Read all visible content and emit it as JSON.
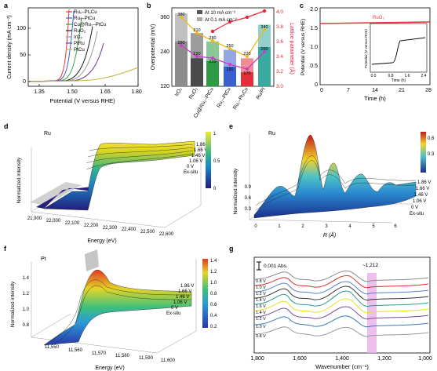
{
  "figure": {
    "panel_labels": [
      "a",
      "b",
      "c",
      "d",
      "e",
      "f",
      "g"
    ]
  },
  "panel_a": {
    "ylabel": "Current density (mA cm⁻²)",
    "xlabel": "Potential (V versus RHE)",
    "xticks": [
      "1.35",
      "1.50",
      "1.65",
      "1.80"
    ],
    "yticks": [
      "0",
      "50",
      "100"
    ],
    "legend": [
      {
        "label": "Ru₁–Pt₃Cu",
        "color": "#e8363d"
      },
      {
        "label": "Ru₁–PtCu",
        "color": "#3c5ed8"
      },
      {
        "label": "Cu@Ru₁–PtCu",
        "color": "#33a24a"
      },
      {
        "label": "RuO₂",
        "color": "#222222"
      },
      {
        "label": "IrO₂",
        "color": "#9a9a9a"
      },
      {
        "label": "PtRu",
        "color": "#6a3f9a"
      },
      {
        "label": "PtCu",
        "color": "#c8b53c"
      }
    ]
  },
  "panel_b": {
    "ylabel_left": "Overpotential (mV)",
    "ylabel_right": "Lattice parameter (Å)",
    "yticks_left": [
      "120",
      "240",
      "360"
    ],
    "yticks_right": [
      "3.0",
      "3.2",
      "3.4",
      "3.6",
      "3.8",
      "4.0"
    ],
    "legend_10": "At 10 mA cm⁻²",
    "legend_01": "At 0.1 mA cm⁻²",
    "categories": [
      "IrO₂",
      "RuO₂",
      "Cu@Ru₁–PtCu",
      "Ru₁–PtCu",
      "Ru₁–Pt₃Cu",
      "Ru/PI"
    ],
    "bar_colors": [
      "#8c8c8c",
      "#4a4a4a",
      "#2c9b44",
      "#3a5fd0",
      "#e0303a",
      "#3aa9a0"
    ],
    "bar_labels_10": [
      "380",
      "310",
      "280",
      "250",
      "220",
      "340"
    ],
    "bar_labels_01": [
      "280",
      "220",
      "210",
      "190",
      "170",
      "260"
    ]
  },
  "panel_c": {
    "ylabel": "Potential (V versus RHE)",
    "xlabel": "Time (h)",
    "xticks": [
      "0",
      "7",
      "14",
      "21",
      "28"
    ],
    "yticks": [
      "0",
      "0.5",
      "1.0",
      "1.5",
      "2.0"
    ],
    "inset_label": "RuO₂",
    "inset_ylabel": "Potential (V versus RHE)",
    "inset_xlabel": "Time (h)",
    "inset_xticks": [
      "0.0",
      "0.8",
      "1.6",
      "2.4"
    ],
    "inset_yticks": [
      "1.5",
      "1.8",
      "2.1",
      "2.4"
    ]
  },
  "panel_d": {
    "element": "Ru",
    "zlabel": "Normalized intensity",
    "xlabel": "Energy (eV)",
    "xticks": [
      "21,900",
      "22,000",
      "22,100",
      "22,200",
      "22,300",
      "22,400",
      "22,500",
      "22,600"
    ],
    "traces": [
      "1.86 V",
      "1.66 V",
      "1.46 V",
      "1.06 V",
      "0 V",
      "Ex-situ"
    ],
    "colorbar_ticks": [
      "1",
      "0.5",
      "0"
    ]
  },
  "panel_e": {
    "element": "Ru",
    "zlabel": "Normalized intensity",
    "xlabel": "R (Å)",
    "xticks": [
      "0",
      "1",
      "2",
      "3",
      "4",
      "5",
      "6"
    ],
    "zticks": [
      "0.3",
      "0.6",
      "0.9"
    ],
    "traces": [
      "1.86 V",
      "1.66 V",
      "1.46 V",
      "1.06 V",
      "0 V",
      "Ex-situ"
    ],
    "colorbar_ticks": [
      "0.6",
      "0.3",
      "0"
    ]
  },
  "panel_f": {
    "element": "Pt",
    "zlabel": "Normalized intensity",
    "xlabel": "Energy (eV)",
    "xticks": [
      "11,550",
      "11,560",
      "11,570",
      "11,580",
      "11,590",
      "11,600"
    ],
    "zticks": [
      "0.8",
      "1.0",
      "1.2",
      "1.4"
    ],
    "traces": [
      "1.86 V",
      "1.66 V",
      "1.46 V",
      "1.06 V",
      "0 V",
      "Ex-situ"
    ],
    "colorbar_ticks": [
      "1.4",
      "1.2",
      "1.0",
      "0.8",
      "0.6",
      "0.4",
      "0.2"
    ]
  },
  "panel_g": {
    "scale_label": "0.001 Abs.",
    "peak_label": "~1,212",
    "xlabel": "Wavenumber (cm⁻¹)",
    "xticks": [
      "1,800",
      "1,600",
      "1,400",
      "1,200",
      "1,000"
    ],
    "trace_labels": [
      "0.8 V",
      "1.0 V",
      "1.2 V",
      "1.4 V",
      "1.6 V",
      "1.4 V",
      "1.2 V",
      "1.0 V",
      "0.8 V"
    ]
  }
}
